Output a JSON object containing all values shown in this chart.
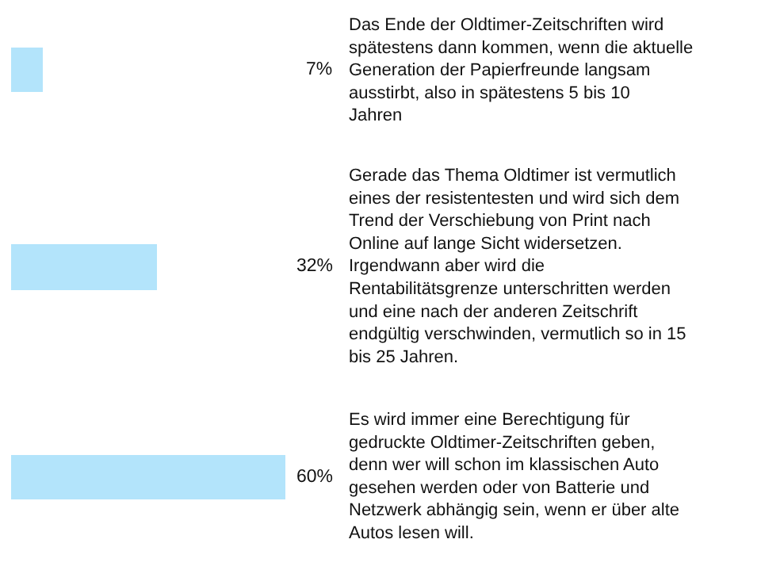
{
  "chart_data": {
    "type": "bar",
    "orientation": "horizontal",
    "categories": [
      "Das Ende der Oldtimer-Zeitschriften wird spätestens dann kommen, wenn die aktuelle Generation der Papierfreunde langsam ausstirbt, also in spätestens 5 bis 10 Jahren",
      "Gerade das Thema Oldtimer ist vermutlich eines der resistentesten und wird sich dem Trend der Verschiebung von Print nach Online auf lange Sicht widersetzen. Irgendwann aber wird die Rentabilitätsgrenze unterschritten werden und eine nach der anderen Zeitschrift endgültig verschwinden, vermutlich so in 15 bis 25 Jahren.",
      "Es wird immer eine Berechtigung für gedruckte Oldtimer-Zeitschriften geben, denn wer will schon im klassischen Auto gesehen werden oder von Batterie und Netzwerk abhängig sein, wenn er über alte Autos lesen will."
    ],
    "values": [
      7,
      32,
      60
    ],
    "value_labels": [
      "7%",
      "32%",
      "60%"
    ],
    "color": "#b3e4fb",
    "xlim": [
      0,
      60
    ],
    "tick_labels": false,
    "grid": false
  }
}
